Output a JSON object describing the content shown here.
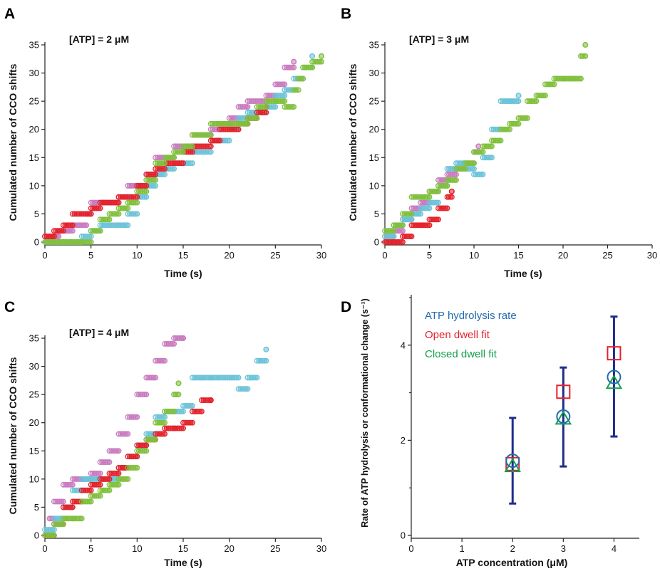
{
  "colors": {
    "pink": "#c97bbf",
    "cyan": "#6cc3d8",
    "red": "#e3222b",
    "green": "#80c03c",
    "navy": "#1f2d8a",
    "axis": "#222222",
    "legend_blue": "#1f6bb0",
    "legend_red": "#e3222b",
    "legend_green": "#12a04a"
  },
  "chart_data": [
    {
      "panel": "A",
      "type": "scatter",
      "annotation": "[ATP] = 2 μM",
      "xlabel": "Time (s)",
      "ylabel": "Cumulated number of  CCO shifts",
      "xlim": [
        0,
        30
      ],
      "ylim": [
        0,
        35
      ],
      "xticks": [
        "0",
        "5",
        "10",
        "15",
        "20",
        "25",
        "30"
      ],
      "yticks": [
        "0",
        "5",
        "10",
        "15",
        "20",
        "25",
        "30",
        "35"
      ],
      "series": [
        {
          "color": "pink",
          "points": [
            [
              0,
              1
            ],
            [
              1.5,
              2
            ],
            [
              3,
              3
            ],
            [
              4.5,
              5
            ],
            [
              5,
              7
            ],
            [
              7.5,
              7
            ],
            [
              8,
              8
            ],
            [
              9,
              10
            ],
            [
              10.5,
              10
            ],
            [
              11,
              12
            ],
            [
              12,
              15
            ],
            [
              14,
              17
            ],
            [
              16,
              19
            ],
            [
              18,
              20
            ],
            [
              19,
              21
            ],
            [
              20,
              22
            ],
            [
              21,
              24
            ],
            [
              22,
              25
            ],
            [
              24,
              26
            ],
            [
              25,
              28
            ],
            [
              26,
              31
            ],
            [
              27,
              32
            ]
          ]
        },
        {
          "color": "cyan",
          "points": [
            [
              0,
              0
            ],
            [
              3,
              0
            ],
            [
              4,
              1
            ],
            [
              5,
              2
            ],
            [
              6,
              3
            ],
            [
              8,
              3
            ],
            [
              9,
              5
            ],
            [
              10,
              8
            ],
            [
              11,
              10
            ],
            [
              12,
              12
            ],
            [
              13,
              13
            ],
            [
              14,
              14
            ],
            [
              16,
              16
            ],
            [
              18,
              18
            ],
            [
              20,
              20
            ],
            [
              21,
              22
            ],
            [
              22,
              23
            ],
            [
              24,
              24
            ],
            [
              25,
              26
            ],
            [
              26,
              27
            ],
            [
              27,
              29
            ],
            [
              28,
              31
            ],
            [
              29,
              33
            ]
          ]
        },
        {
          "color": "red",
          "points": [
            [
              0,
              1
            ],
            [
              1,
              2
            ],
            [
              2,
              3
            ],
            [
              3,
              5
            ],
            [
              5,
              6
            ],
            [
              6,
              7
            ],
            [
              8,
              8
            ],
            [
              10,
              10
            ],
            [
              11,
              12
            ],
            [
              12,
              13
            ],
            [
              13,
              14
            ],
            [
              15,
              16
            ],
            [
              16,
              17
            ],
            [
              18,
              18
            ],
            [
              19,
              20
            ],
            [
              21,
              21
            ],
            [
              22,
              22
            ],
            [
              23,
              23
            ],
            [
              24,
              24
            ]
          ]
        },
        {
          "color": "green",
          "points": [
            [
              0,
              0
            ],
            [
              2,
              0
            ],
            [
              4,
              0
            ],
            [
              5,
              2
            ],
            [
              6,
              4
            ],
            [
              7,
              5
            ],
            [
              8,
              6
            ],
            [
              9,
              7
            ],
            [
              10,
              9
            ],
            [
              11,
              11
            ],
            [
              12,
              14
            ],
            [
              13,
              15
            ],
            [
              14,
              16
            ],
            [
              15,
              17
            ],
            [
              16,
              19
            ],
            [
              18,
              21
            ],
            [
              20,
              21
            ],
            [
              21,
              21
            ],
            [
              22,
              22
            ],
            [
              23,
              24
            ],
            [
              24,
              25
            ],
            [
              25,
              25
            ],
            [
              26,
              24
            ],
            [
              27,
              27
            ],
            [
              27.5,
              29
            ],
            [
              28,
              31
            ],
            [
              29,
              32
            ],
            [
              30,
              33
            ]
          ]
        }
      ]
    },
    {
      "panel": "B",
      "type": "scatter",
      "annotation": "[ATP] = 3 μM",
      "xlabel": "Time (s)",
      "ylabel": "Cumulated number of CCO shifts",
      "xlim": [
        0,
        30
      ],
      "ylim": [
        0,
        35
      ],
      "xticks": [
        "0",
        "5",
        "10",
        "15",
        "20",
        "25",
        "30"
      ],
      "yticks": [
        "0",
        "5",
        "10",
        "15",
        "20",
        "25",
        "30",
        "35"
      ],
      "series": [
        {
          "color": "pink",
          "points": [
            [
              0,
              1
            ],
            [
              1,
              2
            ],
            [
              2,
              4
            ],
            [
              3,
              6
            ],
            [
              4,
              7
            ],
            [
              5,
              9
            ],
            [
              6,
              11
            ],
            [
              7,
              12
            ],
            [
              8,
              13
            ],
            [
              9,
              14
            ],
            [
              10,
              16
            ],
            [
              10.5,
              17
            ]
          ]
        },
        {
          "color": "cyan",
          "points": [
            [
              0,
              1
            ],
            [
              1,
              3
            ],
            [
              2,
              4
            ],
            [
              3,
              5
            ],
            [
              4,
              6
            ],
            [
              5,
              7
            ],
            [
              6,
              10
            ],
            [
              7,
              13
            ],
            [
              8,
              14
            ],
            [
              9,
              13
            ],
            [
              10,
              12
            ],
            [
              11,
              15
            ],
            [
              12,
              20
            ],
            [
              13,
              25
            ],
            [
              14,
              25
            ],
            [
              15,
              26
            ]
          ]
        },
        {
          "color": "red",
          "points": [
            [
              0,
              0
            ],
            [
              1,
              0
            ],
            [
              2,
              1
            ],
            [
              3,
              3
            ],
            [
              4,
              3
            ],
            [
              5,
              4
            ],
            [
              6,
              6
            ],
            [
              7,
              8
            ],
            [
              7.5,
              9
            ]
          ]
        },
        {
          "color": "green",
          "points": [
            [
              0,
              2
            ],
            [
              1,
              3
            ],
            [
              2,
              5
            ],
            [
              3,
              8
            ],
            [
              4,
              8
            ],
            [
              5,
              9
            ],
            [
              6,
              10
            ],
            [
              7,
              11
            ],
            [
              8,
              13
            ],
            [
              9,
              14
            ],
            [
              10,
              16
            ],
            [
              11,
              17
            ],
            [
              12,
              18
            ],
            [
              13,
              20
            ],
            [
              14,
              21
            ],
            [
              15,
              22
            ],
            [
              16,
              25
            ],
            [
              17,
              26
            ],
            [
              18,
              28
            ],
            [
              19,
              29
            ],
            [
              20,
              29
            ],
            [
              21,
              29
            ],
            [
              22,
              33
            ],
            [
              22.5,
              35
            ]
          ]
        }
      ]
    },
    {
      "panel": "C",
      "type": "scatter",
      "annotation": "[ATP] = 4 μM",
      "xlabel": "Time (s)",
      "ylabel": "Cumulated number of CCO shifts",
      "xlim": [
        0,
        30
      ],
      "ylim": [
        0,
        35
      ],
      "xticks": [
        "0",
        "5",
        "10",
        "15",
        "20",
        "25",
        "30"
      ],
      "yticks": [
        "0",
        "5",
        "10",
        "15",
        "20",
        "25",
        "30",
        "35"
      ],
      "series": [
        {
          "color": "pink",
          "points": [
            [
              0,
              0
            ],
            [
              0.5,
              3
            ],
            [
              1,
              6
            ],
            [
              2,
              9
            ],
            [
              3,
              10
            ],
            [
              4,
              10
            ],
            [
              5,
              11
            ],
            [
              6,
              13
            ],
            [
              7,
              15
            ],
            [
              8,
              18
            ],
            [
              9,
              21
            ],
            [
              10,
              25
            ],
            [
              11,
              28
            ],
            [
              12,
              31
            ],
            [
              13,
              34
            ],
            [
              14,
              35
            ],
            [
              15,
              35
            ]
          ]
        },
        {
          "color": "cyan",
          "points": [
            [
              0,
              1
            ],
            [
              1,
              3
            ],
            [
              2,
              5
            ],
            [
              3,
              8
            ],
            [
              4,
              10
            ],
            [
              5,
              10
            ],
            [
              6,
              10
            ],
            [
              7,
              10
            ],
            [
              8,
              12
            ],
            [
              9,
              14
            ],
            [
              10,
              16
            ],
            [
              11,
              18
            ],
            [
              12,
              21
            ],
            [
              13,
              22
            ],
            [
              14,
              22
            ],
            [
              15,
              23
            ],
            [
              16,
              28
            ],
            [
              17,
              28
            ],
            [
              18,
              28
            ],
            [
              20,
              28
            ],
            [
              21,
              26
            ],
            [
              22,
              28
            ],
            [
              23,
              31
            ],
            [
              24,
              33
            ]
          ]
        },
        {
          "color": "red",
          "points": [
            [
              0,
              0
            ],
            [
              1,
              2
            ],
            [
              2,
              5
            ],
            [
              3,
              6
            ],
            [
              4,
              8
            ],
            [
              5,
              9
            ],
            [
              6,
              10
            ],
            [
              7,
              11
            ],
            [
              8,
              12
            ],
            [
              9,
              14
            ],
            [
              10,
              16
            ],
            [
              11,
              17
            ],
            [
              12,
              18
            ],
            [
              13,
              19
            ],
            [
              14,
              19
            ],
            [
              15,
              20
            ],
            [
              16,
              22
            ],
            [
              17,
              24
            ],
            [
              18,
              24
            ]
          ]
        },
        {
          "color": "green",
          "points": [
            [
              0,
              0
            ],
            [
              1,
              2
            ],
            [
              2,
              3
            ],
            [
              3,
              3
            ],
            [
              4,
              6
            ],
            [
              5,
              7
            ],
            [
              6,
              8
            ],
            [
              7,
              9
            ],
            [
              8,
              10
            ],
            [
              9,
              12
            ],
            [
              10,
              15
            ],
            [
              11,
              17
            ],
            [
              12,
              20
            ],
            [
              13,
              22
            ],
            [
              14,
              25
            ],
            [
              14.5,
              27
            ]
          ]
        }
      ]
    },
    {
      "panel": "D",
      "type": "scatter",
      "xlabel": "ATP concentration (μM)",
      "ylabel": "Rate of ATP hydrolysis or conformational change (s⁻¹)",
      "xlim": [
        0,
        4.5
      ],
      "ylim": [
        0,
        5
      ],
      "xticks": [
        "0",
        "1",
        "2",
        "3",
        "4"
      ],
      "yticks": [
        "0",
        "2",
        "4"
      ],
      "series": [
        {
          "name": "ATP hydrolysis rate",
          "marker": "circle",
          "color": "legend_blue",
          "x": [
            2,
            3,
            4
          ],
          "y": [
            1.57,
            2.5,
            3.33
          ],
          "err": [
            [
              0.67,
              2.47
            ],
            [
              1.45,
              3.53
            ],
            [
              2.08,
              4.6
            ]
          ]
        },
        {
          "name": "Open dwell fit",
          "marker": "square",
          "color": "legend_red",
          "x": [
            2,
            3,
            4
          ],
          "y": [
            1.5,
            3.02,
            3.83
          ]
        },
        {
          "name": "Closed dwell fit",
          "marker": "triangle",
          "color": "legend_green",
          "x": [
            2,
            3,
            4
          ],
          "y": [
            1.45,
            2.45,
            3.2
          ]
        }
      ]
    }
  ]
}
